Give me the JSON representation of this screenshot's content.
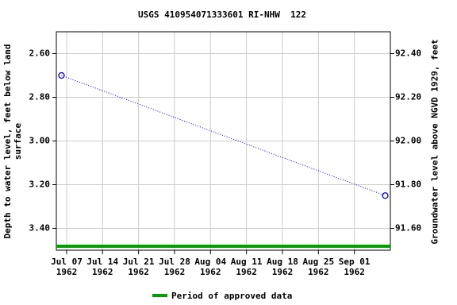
{
  "chart_data": {
    "type": "line",
    "title": "USGS 410954071333601 RI-NHW  122",
    "ylabel": "Depth to water level, feet below land\nsurface",
    "y2label": "Groundwater level above NGVD 1929, feet",
    "x": [
      "1962-07-06",
      "1962-09-07"
    ],
    "series": [
      {
        "color": "#0000cc",
        "values": [
          2.7,
          3.25
        ]
      }
    ],
    "xlim": [
      "1962-07-05",
      "1962-09-08"
    ],
    "xticks": [
      {
        "value": "1962-07-07",
        "label": "Jul 07\n1962"
      },
      {
        "value": "1962-07-14",
        "label": "Jul 14\n1962"
      },
      {
        "value": "1962-07-21",
        "label": "Jul 21\n1962"
      },
      {
        "value": "1962-07-28",
        "label": "Jul 28\n1962"
      },
      {
        "value": "1962-08-04",
        "label": "Aug 04\n1962"
      },
      {
        "value": "1962-08-11",
        "label": "Aug 11\n1962"
      },
      {
        "value": "1962-08-18",
        "label": "Aug 18\n1962"
      },
      {
        "value": "1962-08-25",
        "label": "Aug 25\n1962"
      },
      {
        "value": "1962-09-01",
        "label": "Sep 01\n1962"
      }
    ],
    "ylim": [
      3.5,
      2.5
    ],
    "yticks": [
      {
        "value": 2.6,
        "label": "2.60"
      },
      {
        "value": 2.8,
        "label": "2.80"
      },
      {
        "value": 3.0,
        "label": "3.00"
      },
      {
        "value": 3.2,
        "label": "3.20"
      },
      {
        "value": 3.4,
        "label": "3.40"
      }
    ],
    "y2lim": [
      91.5,
      92.5
    ],
    "y2ticks": [
      {
        "value": 92.4,
        "label": "92.40"
      },
      {
        "value": 92.2,
        "label": "92.20"
      },
      {
        "value": 92.0,
        "label": "92.00"
      },
      {
        "value": 91.8,
        "label": "91.80"
      },
      {
        "value": 91.6,
        "label": "91.60"
      }
    ],
    "grid": true,
    "approved_period": {
      "label": "Period of approved data",
      "color": "#00a000",
      "start": "1962-07-05",
      "end": "1962-09-08"
    }
  }
}
